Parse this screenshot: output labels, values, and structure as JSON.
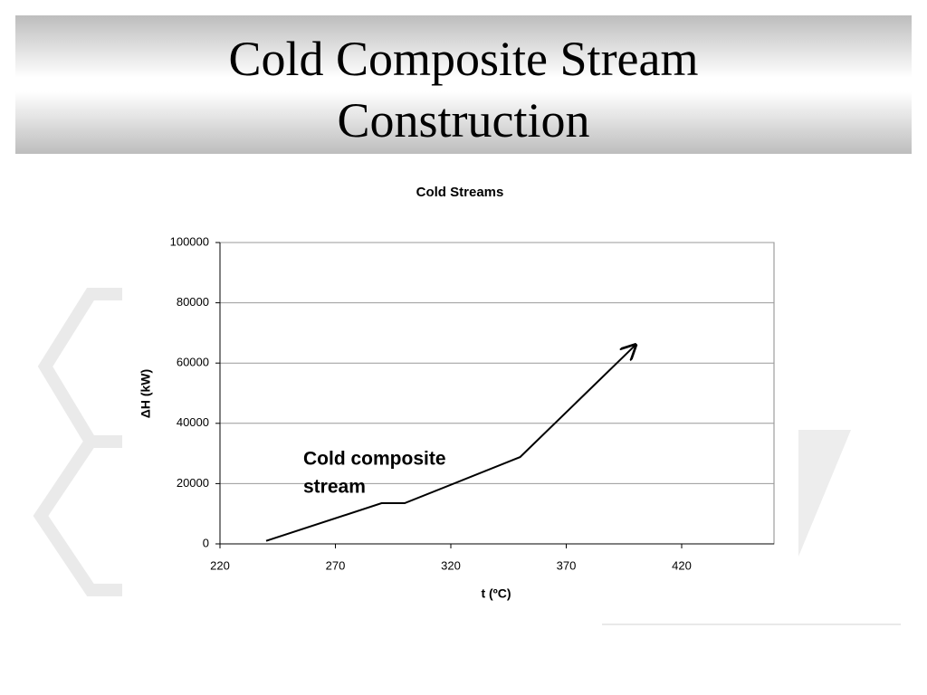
{
  "slide": {
    "title_lines": [
      "Cold Composite Stream",
      "Construction"
    ]
  },
  "chart_data": {
    "type": "line",
    "title": "Cold Streams",
    "x_label": "t (ºC)",
    "y_label": "ΔH (kW)",
    "x": [
      240,
      290,
      300,
      350,
      400
    ],
    "series": [
      {
        "name": "Cold composite stream",
        "color": "#000000",
        "values": [
          1000,
          13500,
          13500,
          28800,
          66000
        ]
      }
    ],
    "annotation_lines": [
      "Cold composite",
      "stream"
    ],
    "xlim": [
      220,
      460
    ],
    "xticks": [
      220,
      270,
      320,
      370,
      420
    ],
    "ylim": [
      0,
      100000
    ],
    "yticks": [
      0,
      20000,
      40000,
      60000,
      80000,
      100000
    ],
    "grid": true,
    "end_arrow": true
  }
}
